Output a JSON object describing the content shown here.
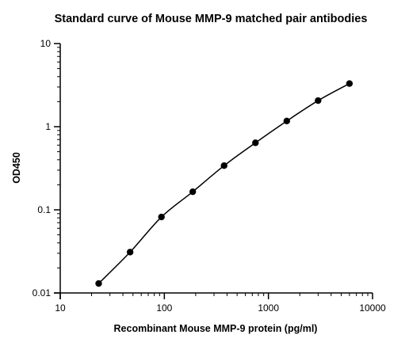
{
  "chart_data": {
    "type": "scatter",
    "title": "Standard curve of Mouse MMP-9 matched pair antibodies",
    "xlabel": "Recombinant Mouse MMP-9 protein (pg/ml)",
    "ylabel": "OD450",
    "x_scale": "log",
    "y_scale": "log",
    "xlim": [
      10,
      10000
    ],
    "ylim": [
      0.01,
      10
    ],
    "x_ticks": [
      "10",
      "100",
      "1000",
      "10000"
    ],
    "y_ticks": [
      "0.01",
      "0.1",
      "1",
      "10"
    ],
    "grid": false,
    "legend": "none",
    "fit_curve": true,
    "series": [
      {
        "x": [
          23.4,
          46.9,
          93.8,
          187.5,
          375,
          750,
          1500,
          3000,
          6000
        ],
        "y": [
          0.013,
          0.031,
          0.082,
          0.165,
          0.34,
          0.64,
          1.17,
          2.06,
          3.3
        ]
      }
    ],
    "colors": {
      "marker": "#000000",
      "curve": "#000000"
    }
  }
}
